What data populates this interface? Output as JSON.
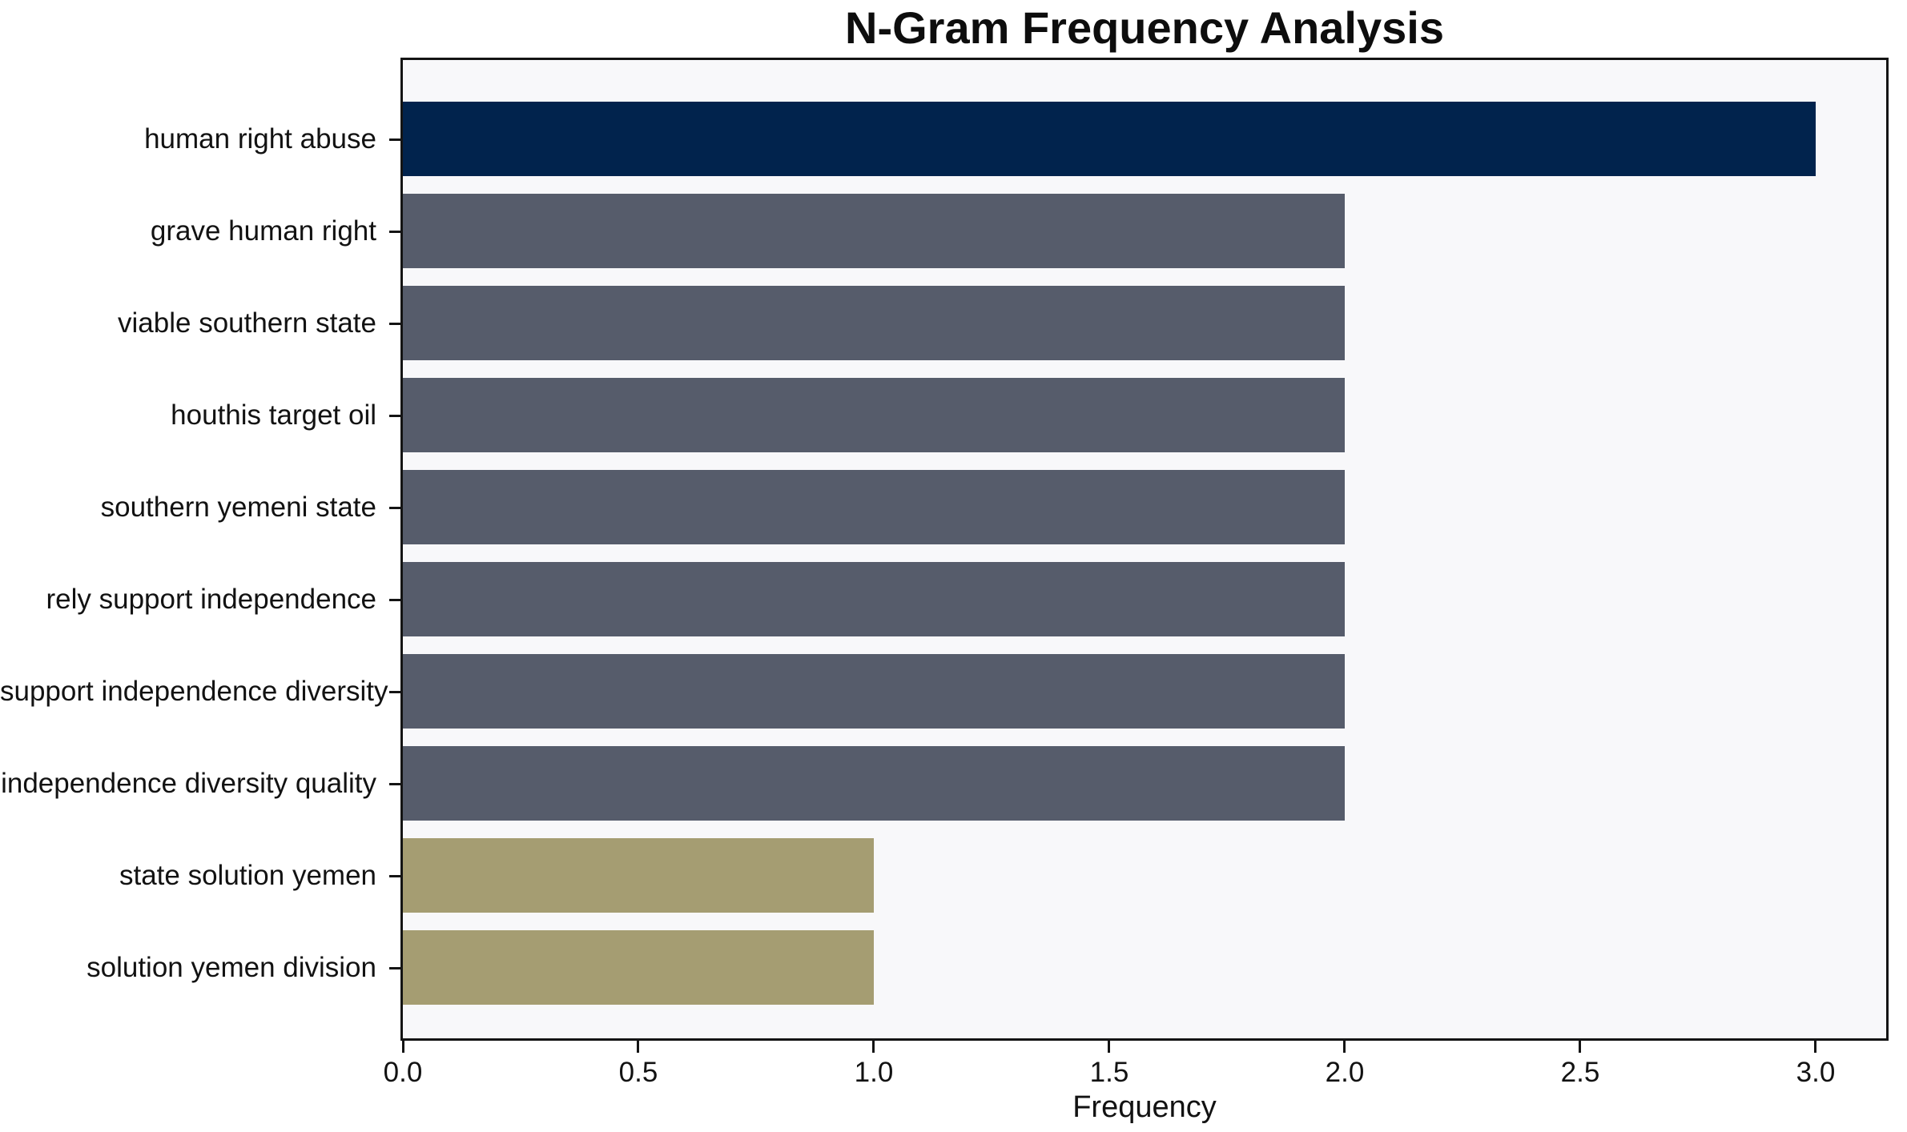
{
  "chart_data": {
    "type": "bar",
    "orientation": "horizontal",
    "title": "N-Gram Frequency Analysis",
    "xlabel": "Frequency",
    "ylabel": "",
    "categories": [
      "human right abuse",
      "grave human right",
      "viable southern state",
      "houthis target oil",
      "southern yemeni state",
      "rely support independence",
      "support independence diversity",
      "independence diversity quality",
      "state solution yemen",
      "solution yemen division"
    ],
    "values": [
      3,
      2,
      2,
      2,
      2,
      2,
      2,
      2,
      1,
      1
    ],
    "bar_colors": [
      "#01234d",
      "#565c6b",
      "#565c6b",
      "#565c6b",
      "#565c6b",
      "#565c6b",
      "#565c6b",
      "#565c6b",
      "#a59d72",
      "#a59d72"
    ],
    "xlim": [
      0,
      3.15
    ],
    "xticks": [
      0,
      0.5,
      1,
      1.5,
      2,
      2.5,
      3
    ],
    "xtick_labels": [
      "0.0",
      "0.5",
      "1.0",
      "1.5",
      "2.0",
      "2.5",
      "3.0"
    ],
    "grid": false,
    "legend_position": "none",
    "plot_background": "#f8f8fa",
    "figure_background": "#ffffff",
    "spine_color": "#141414",
    "text_color": "#121212"
  }
}
